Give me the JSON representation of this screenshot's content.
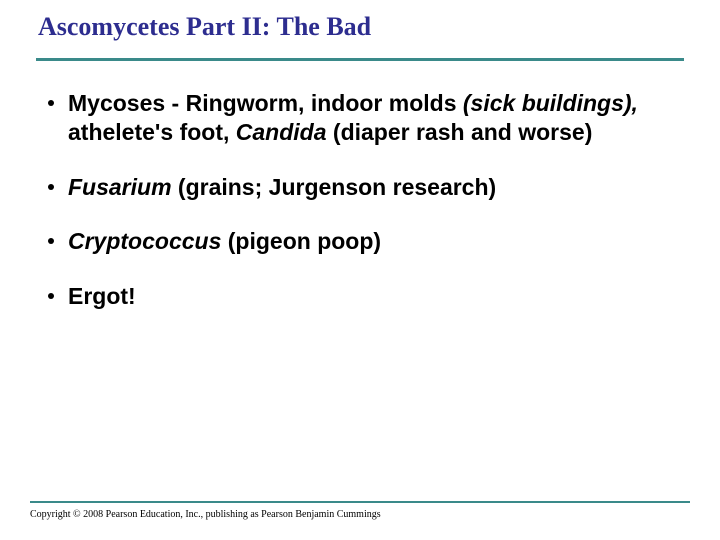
{
  "title": "Ascomycetes Part II: The Bad",
  "title_color": "#2d2d8f",
  "title_fontsize": 26,
  "accent_rule_color": "#3a8a8a",
  "background_color": "#ffffff",
  "body_fontsize": 23,
  "bullets": [
    {
      "segments": [
        {
          "text": "Mycoses - Ringworm,  indoor molds ",
          "style": "b"
        },
        {
          "text": "(sick buildings),",
          "style": "bi"
        },
        {
          "text": " athelete's foot, ",
          "style": "b"
        },
        {
          "text": "Candida",
          "style": "bi"
        },
        {
          "text": " (diaper rash and worse)",
          "style": "b"
        }
      ]
    },
    {
      "segments": [
        {
          "text": "Fusarium",
          "style": "bi"
        },
        {
          "text": " (grains; Jurgenson research)",
          "style": "b"
        }
      ]
    },
    {
      "segments": [
        {
          "text": "Cryptococcus",
          "style": "bi"
        },
        {
          "text": " (pigeon poop)",
          "style": "b"
        }
      ]
    },
    {
      "segments": [
        {
          "text": "Ergot!",
          "style": "b"
        }
      ]
    }
  ],
  "copyright": "Copyright © 2008 Pearson Education, Inc., publishing as Pearson Benjamin Cummings",
  "copyright_fontsize": 10
}
